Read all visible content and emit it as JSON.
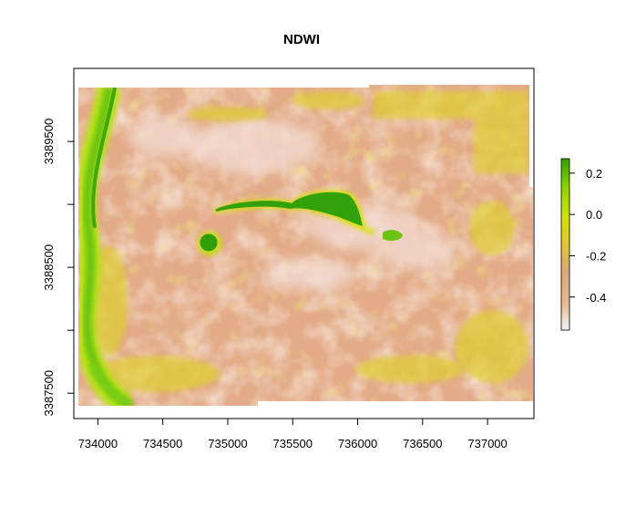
{
  "chart_data": {
    "type": "heatmap",
    "title": "NDWI",
    "xlabel": "",
    "ylabel": "",
    "x_ticks": [
      734000,
      734500,
      735000,
      735500,
      736000,
      736500,
      737000
    ],
    "y_ticks": [
      3387500,
      3388500,
      3389500
    ],
    "x_range": [
      733850,
      737350
    ],
    "y_range": [
      3387400,
      3389950
    ],
    "colorbar": {
      "ticks": [
        0.2,
        0.0,
        -0.2,
        -0.4
      ],
      "tick_labels": [
        "0.2",
        "0.0",
        "-0.2",
        "-0.4"
      ],
      "range": [
        -0.56,
        0.27
      ],
      "colors": [
        "#f2f2f2",
        "#e8b68f",
        "#dca77a",
        "#e3c53a",
        "#cfe000",
        "#8bd400",
        "#2fa000"
      ]
    },
    "features": [
      {
        "name": "elongated water body",
        "ndwi": 0.22
      },
      {
        "name": "small round pond",
        "ndwi": 0.18
      },
      {
        "name": "river channel (west)",
        "ndwi": 0.05
      },
      {
        "name": "bright bare soil",
        "ndwi": -0.5
      },
      {
        "name": "background",
        "ndwi": -0.35
      }
    ],
    "grid": false,
    "legend_position": "right"
  }
}
